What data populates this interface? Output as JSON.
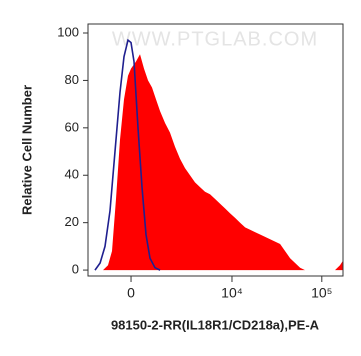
{
  "chart_data": {
    "type": "area",
    "watermark": "WWW.PTGLAB.COM",
    "xlabel": "98150-2-RR(IL18R1/CD218a),PE-A",
    "ylabel": "Relative Cell Number",
    "xscale": "biexponential",
    "xlim": [
      -2034,
      172000
    ],
    "xticks": [
      0,
      {
        "value": 10000,
        "label": "10⁴"
      },
      {
        "value": 100000,
        "label": "10⁵"
      }
    ],
    "ylim": [
      -2.5,
      103.8
    ],
    "yticks": [
      0,
      20,
      40,
      60,
      80,
      100
    ],
    "series": [
      {
        "type": "area",
        "color": "#ff0000",
        "x": [
          -1186,
          -948,
          -769,
          -598,
          -434,
          -274,
          -117,
          0,
          195,
          353,
          515,
          683,
          857,
          1041,
          1237,
          1499,
          1782,
          2093,
          2443,
          2835,
          3269,
          3756,
          4310,
          4931,
          5631,
          6438,
          7336,
          8356,
          9513,
          10837,
          12328,
          14018,
          15935,
          18112,
          20593,
          23408,
          26620,
          30257,
          34397,
          39085,
          44442,
          50530,
          57380,
          65140,
          140300,
          159500,
          172000
        ],
        "values": [
          0,
          2,
          8,
          30,
          55,
          72,
          82,
          85,
          88,
          91,
          85,
          80,
          77,
          72,
          67,
          62,
          58,
          52,
          47,
          43,
          40,
          37,
          35,
          33,
          32,
          30,
          28,
          26,
          24,
          22,
          20,
          18,
          17,
          16,
          15,
          14,
          13,
          12,
          11,
          8,
          5,
          3,
          1,
          0,
          0,
          2,
          4
        ]
      },
      {
        "type": "line",
        "color": "#1f1f8f",
        "x": [
          -1610,
          -1336,
          -1088,
          -857,
          -641,
          -434,
          -274,
          -117,
          0,
          117,
          274,
          434,
          598,
          769,
          994,
          1237
        ],
        "values": [
          0,
          3,
          10,
          25,
          50,
          75,
          90,
          97,
          96,
          88,
          60,
          35,
          15,
          5,
          1,
          0
        ]
      }
    ]
  }
}
